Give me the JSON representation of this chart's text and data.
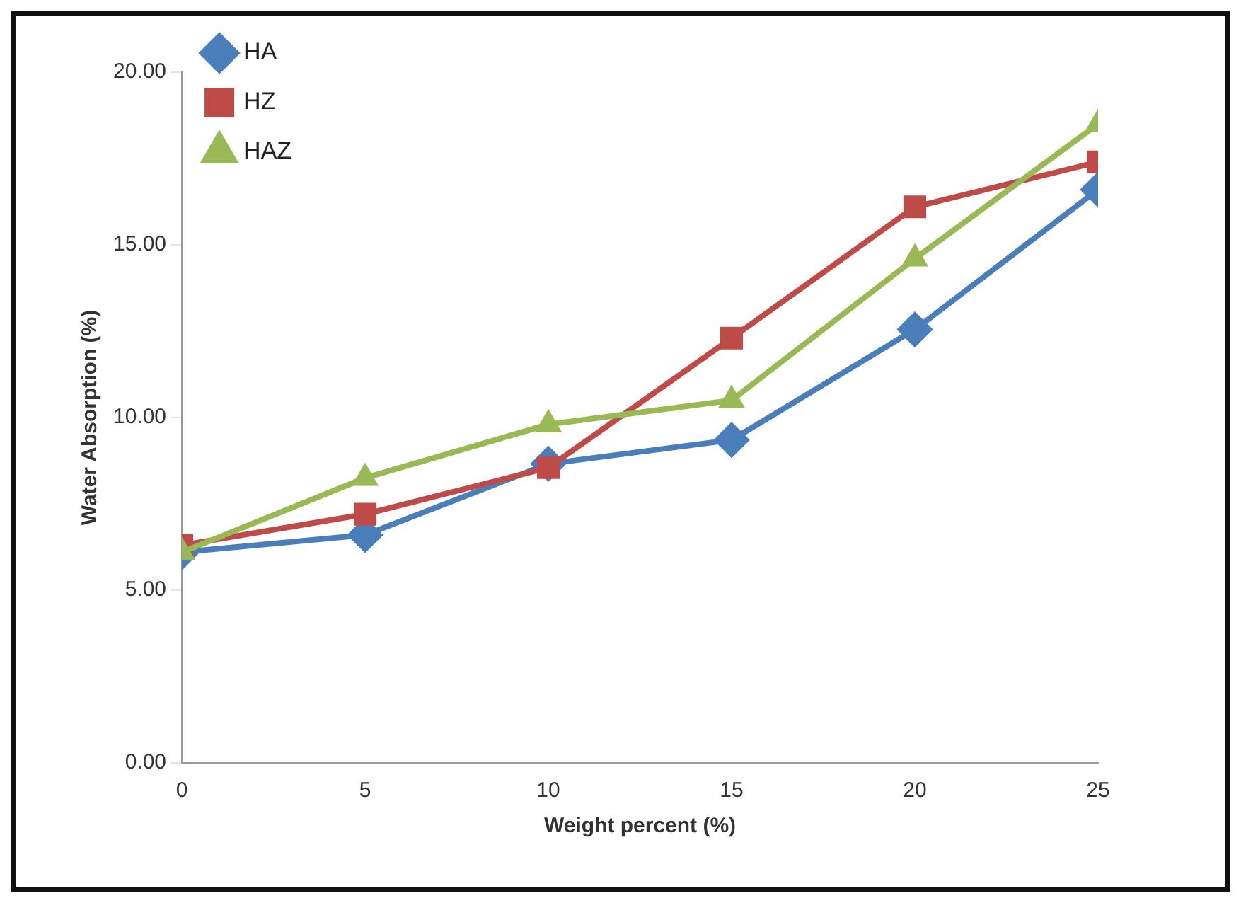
{
  "chart_data": {
    "type": "line",
    "xlabel": "Weight percent (%)",
    "ylabel": "Water Absorption (%)",
    "x": [
      0,
      5,
      10,
      15,
      20,
      25
    ],
    "series": [
      {
        "name": "HA",
        "color": "#4a7ebb",
        "marker": "diamond",
        "values": [
          6.1,
          6.6,
          8.66,
          9.35,
          12.55,
          16.6
        ]
      },
      {
        "name": "HZ",
        "color": "#be4b48",
        "marker": "square",
        "values": [
          6.3,
          7.2,
          8.55,
          12.3,
          16.1,
          17.4
        ]
      },
      {
        "name": "HAZ",
        "color": "#98b954",
        "marker": "triangle",
        "values": [
          6.1,
          8.25,
          9.8,
          10.5,
          14.6,
          18.5
        ]
      }
    ],
    "xlim": [
      0,
      25
    ],
    "xticks": [
      0,
      5,
      10,
      15,
      20,
      25
    ],
    "ylim": [
      0,
      20
    ],
    "yticks": [
      {
        "value": 0,
        "label": "0.00"
      },
      {
        "value": 5,
        "label": "5.00"
      },
      {
        "value": 10,
        "label": "10.00"
      },
      {
        "value": 15,
        "label": "15.00"
      },
      {
        "value": 20,
        "label": "20.00"
      }
    ],
    "grid": false,
    "legend": "top left",
    "line_style": "solid"
  }
}
